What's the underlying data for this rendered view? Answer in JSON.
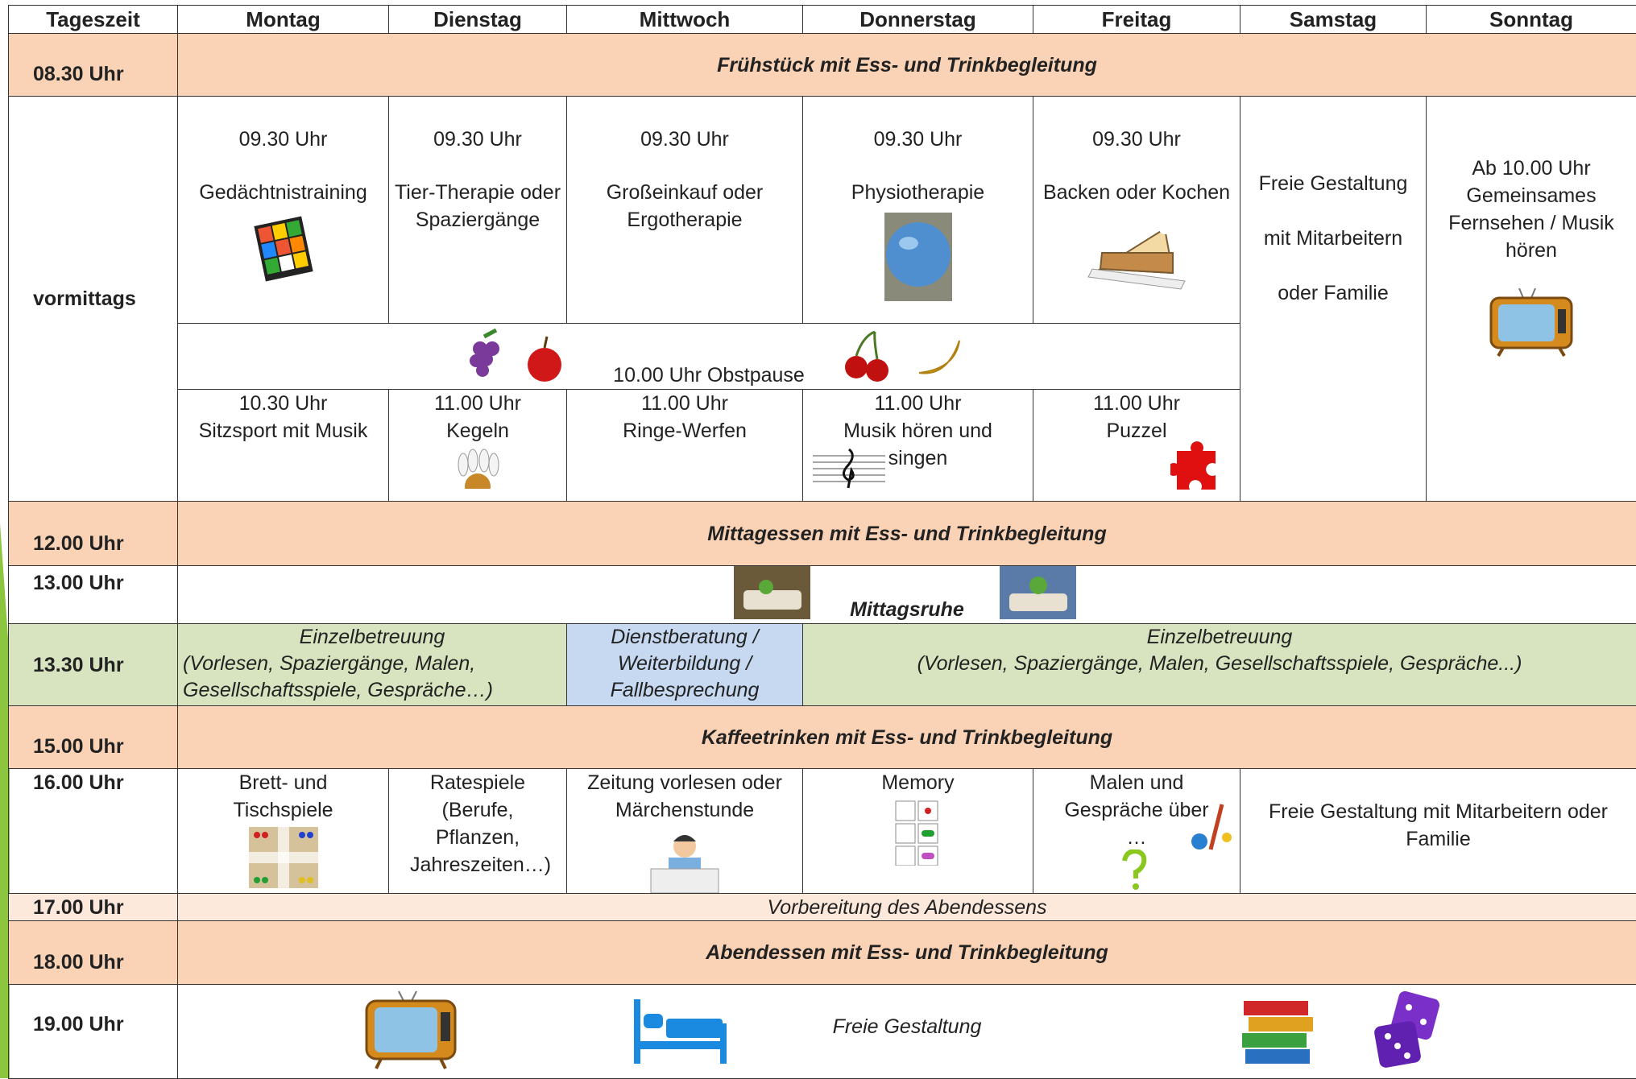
{
  "header": [
    "Tageszeit",
    "Montag",
    "Dienstag",
    "Mittwoch",
    "Donnerstag",
    "Freitag",
    "Samstag",
    "Sonntag"
  ],
  "breakfast": {
    "time": "08.30 Uhr",
    "text": "Frühstück mit Ess- und Trinkbegleitung"
  },
  "morning": {
    "label": "vormittags",
    "first": [
      {
        "time": "09.30 Uhr",
        "activity": "Gedächtnistraining"
      },
      {
        "time": "09.30 Uhr",
        "activity": "Tier-Therapie oder Spaziergänge"
      },
      {
        "time": "09.30 Uhr",
        "activity": "Großeinkauf oder Ergotherapie"
      },
      {
        "time": "09.30 Uhr",
        "activity": "Physiotherapie"
      },
      {
        "time": "09.30 Uhr",
        "activity": "Backen oder Kochen"
      }
    ],
    "saturday": "Freie Gestaltung mit Mitarbeitern oder Familie",
    "sunday": "Ab 10.00 Uhr Gemeinsames Fernsehen / Musik hören",
    "fruit_break": "10.00 Uhr Obstpause",
    "second": [
      {
        "time": "10.30 Uhr",
        "activity": "Sitzsport mit Musik"
      },
      {
        "time": "11.00 Uhr",
        "activity": "Kegeln"
      },
      {
        "time": "11.00 Uhr",
        "activity": "Ringe-Werfen"
      },
      {
        "time": "11.00 Uhr",
        "activity": "Musik hören und singen"
      },
      {
        "time": "11.00 Uhr",
        "activity": "Puzzel"
      }
    ]
  },
  "lunch": {
    "time": "12.00 Uhr",
    "text": "Mittagessen mit Ess- und Trinkbegleitung"
  },
  "rest": {
    "time": "13.00 Uhr",
    "text": "Mittagsruhe"
  },
  "care": {
    "time": "13.30 Uhr",
    "left": {
      "title": "Einzelbetreuung",
      "detail": "(Vorlesen, Spaziergänge, Malen, Gesellschaftsspiele, Gespräche…)"
    },
    "wednesday": "Dienstberatung / Weiterbildung / Fallbesprechung",
    "right": {
      "title": "Einzelbetreuung",
      "detail": "(Vorlesen, Spaziergänge, Malen, Gesellschaftsspiele, Gespräche...)"
    }
  },
  "coffee": {
    "time": "15.00 Uhr",
    "text": "Kaffeetrinken mit Ess- und Trinkbegleitung"
  },
  "afternoon": {
    "time": "16.00 Uhr",
    "activities": [
      "Brett- und Tischspiele",
      "Ratespiele (Berufe, Pflanzen, Jahreszeiten…)",
      "Zeitung vorlesen oder Märchenstunde",
      "Memory",
      "Malen und Gespräche über …"
    ],
    "weekend": "Freie Gestaltung mit Mitarbeitern oder Familie"
  },
  "prep": {
    "time": "17.00 Uhr",
    "text": "Vorbereitung des Abendessens"
  },
  "dinner": {
    "time": "18.00 Uhr",
    "text": "Abendessen mit Ess- und Trinkbegleitung"
  },
  "evening": {
    "time": "19.00 Uhr",
    "text": "Freie Gestaltung"
  }
}
